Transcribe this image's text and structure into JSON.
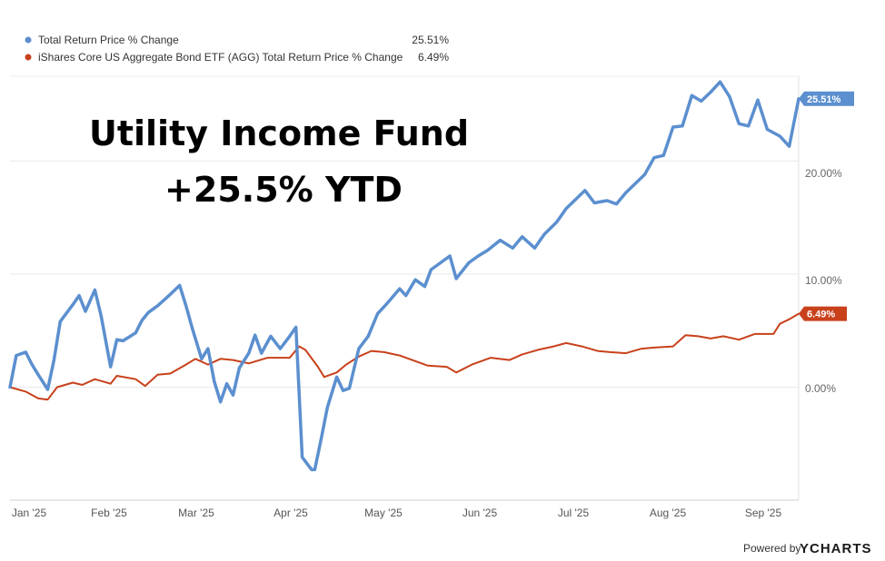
{
  "chart_data": {
    "type": "line",
    "title": "",
    "xlabel": "",
    "ylabel": "",
    "x_ticks": [
      "Jan '25",
      "Feb '25",
      "Mar '25",
      "Apr '25",
      "May '25",
      "Jun '25",
      "Jul '25",
      "Aug '25",
      "Sep '25"
    ],
    "y_ticks": [
      "0.00%",
      "10.00%",
      "20.00%"
    ],
    "ylim": [
      -10,
      27.5
    ],
    "grid": true,
    "legend_position": "top-left",
    "series": [
      {
        "name": "Total Return Price % Change",
        "color": "#5b8fcf",
        "last_value": 25.51,
        "last_label": "25.51%",
        "points": [
          [
            "2025-01-01",
            0.0
          ],
          [
            "2025-01-03",
            2.8
          ],
          [
            "2025-01-06",
            3.1
          ],
          [
            "2025-01-08",
            2.0
          ],
          [
            "2025-01-10",
            1.1
          ],
          [
            "2025-01-13",
            -0.2
          ],
          [
            "2025-01-15",
            2.4
          ],
          [
            "2025-01-17",
            5.8
          ],
          [
            "2025-01-21",
            7.3
          ],
          [
            "2025-01-23",
            8.1
          ],
          [
            "2025-01-25",
            6.7
          ],
          [
            "2025-01-28",
            8.6
          ],
          [
            "2025-01-30",
            6.3
          ],
          [
            "2025-02-02",
            1.8
          ],
          [
            "2025-02-04",
            4.2
          ],
          [
            "2025-02-06",
            4.1
          ],
          [
            "2025-02-10",
            4.8
          ],
          [
            "2025-02-12",
            5.9
          ],
          [
            "2025-02-14",
            6.6
          ],
          [
            "2025-02-17",
            7.2
          ],
          [
            "2025-02-19",
            7.7
          ],
          [
            "2025-02-21",
            8.2
          ],
          [
            "2025-02-24",
            9.0
          ],
          [
            "2025-02-26",
            7.2
          ],
          [
            "2025-02-28",
            5.2
          ],
          [
            "2025-03-03",
            2.5
          ],
          [
            "2025-03-05",
            3.4
          ],
          [
            "2025-03-07",
            0.5
          ],
          [
            "2025-03-09",
            -1.3
          ],
          [
            "2025-03-11",
            0.3
          ],
          [
            "2025-03-13",
            -0.7
          ],
          [
            "2025-03-15",
            1.7
          ],
          [
            "2025-03-18",
            3.0
          ],
          [
            "2025-03-20",
            4.6
          ],
          [
            "2025-03-22",
            3.0
          ],
          [
            "2025-03-25",
            4.5
          ],
          [
            "2025-03-28",
            3.4
          ],
          [
            "2025-03-31",
            4.5
          ],
          [
            "2025-04-02",
            5.3
          ],
          [
            "2025-04-04",
            -6.2
          ],
          [
            "2025-04-07",
            -7.3
          ],
          [
            "2025-04-08",
            -7.3
          ],
          [
            "2025-04-10",
            -4.6
          ],
          [
            "2025-04-12",
            -1.8
          ],
          [
            "2025-04-15",
            0.9
          ],
          [
            "2025-04-17",
            -0.3
          ],
          [
            "2025-04-19",
            -0.1
          ],
          [
            "2025-04-22",
            3.4
          ],
          [
            "2025-04-25",
            4.5
          ],
          [
            "2025-04-28",
            6.5
          ],
          [
            "2025-05-01",
            7.4
          ],
          [
            "2025-05-05",
            8.7
          ],
          [
            "2025-05-07",
            8.1
          ],
          [
            "2025-05-10",
            9.5
          ],
          [
            "2025-05-13",
            8.9
          ],
          [
            "2025-05-15",
            10.4
          ],
          [
            "2025-05-18",
            11.0
          ],
          [
            "2025-05-21",
            11.6
          ],
          [
            "2025-05-23",
            9.6
          ],
          [
            "2025-05-27",
            11.0
          ],
          [
            "2025-05-30",
            11.6
          ],
          [
            "2025-06-02",
            12.1
          ],
          [
            "2025-06-06",
            13.0
          ],
          [
            "2025-06-10",
            12.3
          ],
          [
            "2025-06-13",
            13.3
          ],
          [
            "2025-06-17",
            12.3
          ],
          [
            "2025-06-20",
            13.5
          ],
          [
            "2025-06-24",
            14.6
          ],
          [
            "2025-06-27",
            15.8
          ],
          [
            "2025-06-30",
            16.6
          ],
          [
            "2025-07-03",
            17.4
          ],
          [
            "2025-07-06",
            16.3
          ],
          [
            "2025-07-10",
            16.5
          ],
          [
            "2025-07-13",
            16.2
          ],
          [
            "2025-07-16",
            17.2
          ],
          [
            "2025-07-19",
            18.0
          ],
          [
            "2025-07-22",
            18.8
          ],
          [
            "2025-07-25",
            20.3
          ],
          [
            "2025-07-28",
            20.5
          ],
          [
            "2025-07-31",
            23.0
          ],
          [
            "2025-08-03",
            23.1
          ],
          [
            "2025-08-06",
            25.8
          ],
          [
            "2025-08-09",
            25.3
          ],
          [
            "2025-08-12",
            26.1
          ],
          [
            "2025-08-15",
            27.0
          ],
          [
            "2025-08-18",
            25.7
          ],
          [
            "2025-08-21",
            23.3
          ],
          [
            "2025-08-24",
            23.1
          ],
          [
            "2025-08-27",
            25.4
          ],
          [
            "2025-08-30",
            22.8
          ],
          [
            "2025-09-03",
            22.2
          ],
          [
            "2025-09-06",
            21.3
          ],
          [
            "2025-09-09",
            25.51
          ]
        ]
      },
      {
        "name": "iShares Core US Aggregate Bond ETF (AGG) Total Return Price % Change",
        "color": "#c8411b",
        "last_value": 6.49,
        "last_label": "6.49%",
        "points": [
          [
            "2025-01-01",
            0.0
          ],
          [
            "2025-01-06",
            -0.4
          ],
          [
            "2025-01-10",
            -1.0
          ],
          [
            "2025-01-13",
            -1.1
          ],
          [
            "2025-01-16",
            0.0
          ],
          [
            "2025-01-21",
            0.4
          ],
          [
            "2025-01-24",
            0.2
          ],
          [
            "2025-01-28",
            0.7
          ],
          [
            "2025-02-02",
            0.3
          ],
          [
            "2025-02-04",
            1.0
          ],
          [
            "2025-02-10",
            0.7
          ],
          [
            "2025-02-13",
            0.1
          ],
          [
            "2025-02-17",
            1.1
          ],
          [
            "2025-02-21",
            1.2
          ],
          [
            "2025-02-26",
            2.0
          ],
          [
            "2025-03-01",
            2.5
          ],
          [
            "2025-03-05",
            2.0
          ],
          [
            "2025-03-09",
            2.5
          ],
          [
            "2025-03-13",
            2.4
          ],
          [
            "2025-03-18",
            2.1
          ],
          [
            "2025-03-24",
            2.6
          ],
          [
            "2025-03-31",
            2.6
          ],
          [
            "2025-04-03",
            3.6
          ],
          [
            "2025-04-05",
            3.3
          ],
          [
            "2025-04-09",
            1.8
          ],
          [
            "2025-04-11",
            0.9
          ],
          [
            "2025-04-15",
            1.3
          ],
          [
            "2025-04-18",
            2.0
          ],
          [
            "2025-04-22",
            2.7
          ],
          [
            "2025-04-26",
            3.2
          ],
          [
            "2025-04-30",
            3.1
          ],
          [
            "2025-05-05",
            2.8
          ],
          [
            "2025-05-09",
            2.4
          ],
          [
            "2025-05-14",
            1.9
          ],
          [
            "2025-05-20",
            1.8
          ],
          [
            "2025-05-23",
            1.3
          ],
          [
            "2025-05-28",
            2.0
          ],
          [
            "2025-06-03",
            2.6
          ],
          [
            "2025-06-09",
            2.4
          ],
          [
            "2025-06-13",
            2.9
          ],
          [
            "2025-06-18",
            3.3
          ],
          [
            "2025-06-23",
            3.6
          ],
          [
            "2025-06-27",
            3.9
          ],
          [
            "2025-07-02",
            3.6
          ],
          [
            "2025-07-07",
            3.2
          ],
          [
            "2025-07-11",
            3.1
          ],
          [
            "2025-07-16",
            3.0
          ],
          [
            "2025-07-21",
            3.4
          ],
          [
            "2025-07-25",
            3.5
          ],
          [
            "2025-07-31",
            3.6
          ],
          [
            "2025-08-04",
            4.6
          ],
          [
            "2025-08-08",
            4.5
          ],
          [
            "2025-08-12",
            4.3
          ],
          [
            "2025-08-16",
            4.5
          ],
          [
            "2025-08-21",
            4.2
          ],
          [
            "2025-08-26",
            4.7
          ],
          [
            "2025-09-01",
            4.7
          ],
          [
            "2025-09-03",
            5.6
          ],
          [
            "2025-09-06",
            6.0
          ],
          [
            "2025-09-09",
            6.49
          ]
        ]
      }
    ],
    "annotations": [
      "Utility Income Fund",
      "+25.5% YTD"
    ]
  },
  "legend": [
    {
      "label": "Total Return Price % Change",
      "value": "25.51%",
      "color": "#5b8fcf"
    },
    {
      "label": "iShares Core US Aggregate Bond ETF (AGG) Total Return Price % Change",
      "value": "6.49%",
      "color": "#c8411b"
    }
  ],
  "overlay": {
    "line1": "Utility Income Fund",
    "line2": "+25.5% YTD"
  },
  "footer": {
    "powered_by": "Powered by",
    "brand": "YCHARTS"
  }
}
